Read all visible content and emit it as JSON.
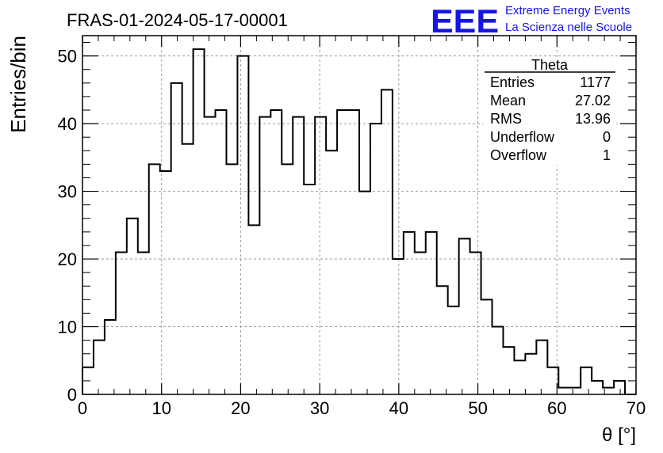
{
  "header": {
    "run_title": "FRAS-01-2024-05-17-00001",
    "logo_text": "EEE",
    "logo_line1": "Extreme Energy Events",
    "logo_line2": "La Scienza nelle Scuole",
    "logo_color": "#1515e6"
  },
  "stats_box": {
    "title": "Theta",
    "rows": [
      {
        "label": "Entries",
        "value": "1177"
      },
      {
        "label": "Mean",
        "value": "27.02"
      },
      {
        "label": "RMS",
        "value": "13.96"
      },
      {
        "label": "Underflow",
        "value": "0"
      },
      {
        "label": "Overflow",
        "value": "1"
      }
    ]
  },
  "chart_data": {
    "type": "bar",
    "style": "step-histogram",
    "xlabel": "θ [°]",
    "ylabel": "Entries/bin",
    "xlim": [
      0,
      70
    ],
    "ylim": [
      0,
      53
    ],
    "bin_width": 1.4,
    "grid": true,
    "x_ticks": [
      0,
      10,
      20,
      30,
      40,
      50,
      60,
      70
    ],
    "y_ticks": [
      0,
      10,
      20,
      30,
      40,
      50
    ],
    "values": [
      4,
      8,
      11,
      21,
      26,
      21,
      34,
      33,
      46,
      37,
      51,
      41,
      42,
      34,
      50,
      25,
      41,
      42,
      34,
      41,
      31,
      41,
      36,
      42,
      42,
      30,
      40,
      45,
      20,
      24,
      21,
      24,
      16,
      13,
      23,
      21,
      14,
      10,
      7,
      5,
      6,
      8,
      4,
      1,
      1,
      4,
      2,
      1,
      2,
      0
    ],
    "line_color": "#000000"
  }
}
